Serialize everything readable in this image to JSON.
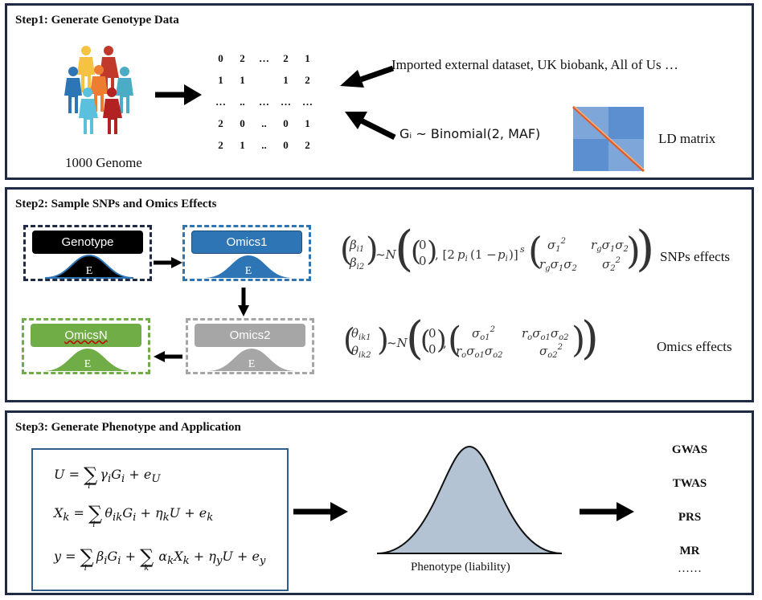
{
  "step1": {
    "title": "Step1: Generate Genotype Data",
    "people_label": "1000 Genome",
    "matrix": [
      [
        "0",
        "2",
        "…",
        "2",
        "1"
      ],
      [
        "1",
        "1",
        "",
        "1",
        "2"
      ],
      [
        "…",
        "..",
        "…",
        "…",
        "…"
      ],
      [
        "2",
        "0",
        "..",
        "0",
        "1"
      ],
      [
        "2",
        "1",
        "..",
        "0",
        "2"
      ]
    ],
    "external_text": "Imported external dataset, UK biobank, All of Us …",
    "binomial_text": "Gᵢ ~ Binomial(2, MAF)",
    "ld_label": "LD matrix"
  },
  "step2": {
    "title": "Step2: Sample SNPs and Omics Effects",
    "boxes": {
      "genotype": "Genotype",
      "omics1": "Omics1",
      "omics2": "Omics2",
      "omicsN": "OmicsN",
      "effect": "E"
    },
    "snps_label": "SNPs effects",
    "omics_label": "Omics effects",
    "colors": {
      "genotype": "#000000",
      "omics1": "#2e75b6",
      "omics2": "#a6a6a6",
      "omicsN": "#70ad47"
    }
  },
  "step3": {
    "title": "Step3: Generate Phenotype and Application",
    "phenotype_label": "Phenotype (liability)",
    "applications": [
      "GWAS",
      "TWAS",
      "PRS",
      "MR",
      "……"
    ]
  }
}
